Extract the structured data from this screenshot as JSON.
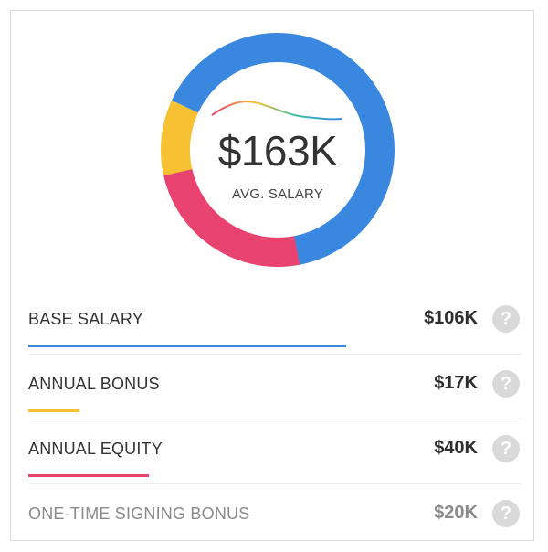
{
  "summary": {
    "amount": "$163K",
    "label": "AVG. SALARY"
  },
  "donut": {
    "segments": [
      {
        "name": "base_salary",
        "color": "#3a87e0",
        "fraction": 0.65
      },
      {
        "name": "annual_equity",
        "color": "#e8436e",
        "fraction": 0.245
      },
      {
        "name": "annual_bonus",
        "color": "#f6c233",
        "fraction": 0.105
      }
    ]
  },
  "breakdown": [
    {
      "label": "BASE SALARY",
      "value": "$106K",
      "color": "#3a87e0",
      "fill": 0.645,
      "muted": false
    },
    {
      "label": "ANNUAL BONUS",
      "value": "$17K",
      "color": "#f6c233",
      "fill": 0.104,
      "muted": false
    },
    {
      "label": "ANNUAL EQUITY",
      "value": "$40K",
      "color": "#e8436e",
      "fill": 0.244,
      "muted": false
    },
    {
      "label": "ONE-TIME SIGNING BONUS",
      "value": "$20K",
      "color": "",
      "fill": 0,
      "muted": true
    }
  ],
  "help_icon_glyph": "?"
}
